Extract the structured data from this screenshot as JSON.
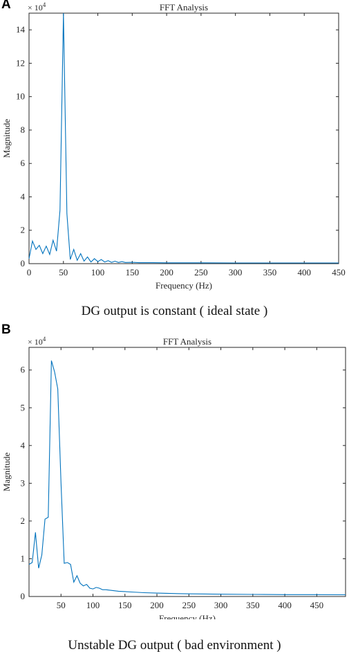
{
  "panels": [
    {
      "letter": "A",
      "caption": "DG output is constant ( ideal state )"
    },
    {
      "letter": "B",
      "caption": "Unstable DG output ( bad environment )"
    }
  ],
  "colors": {
    "line": "#0072BD",
    "axis": "#262626"
  },
  "chart_data": [
    {
      "type": "line",
      "title": "FFT Analysis",
      "xlabel": "Frequency (Hz)",
      "ylabel": "Magnitude",
      "multiplier_label": "× 10",
      "multiplier_exp": "4",
      "xlim": [
        0,
        450
      ],
      "ylim": [
        0,
        15
      ],
      "x_ticks": [
        0,
        50,
        100,
        150,
        200,
        250,
        300,
        350,
        400,
        450
      ],
      "y_ticks": [
        0,
        2,
        4,
        6,
        8,
        10,
        12,
        14
      ],
      "grid": false,
      "series": [
        {
          "x": [
            0,
            5,
            10,
            15,
            20,
            25,
            30,
            35,
            40,
            45,
            50,
            55,
            60,
            65,
            70,
            75,
            80,
            85,
            90,
            95,
            100,
            105,
            110,
            115,
            120,
            125,
            130,
            135,
            140,
            150,
            160,
            180,
            200,
            250,
            300,
            350,
            400,
            450
          ],
          "y": [
            0.3,
            1.35,
            0.85,
            1.1,
            0.6,
            1.05,
            0.55,
            1.4,
            0.75,
            3.2,
            15,
            3.0,
            0.25,
            0.85,
            0.2,
            0.6,
            0.15,
            0.4,
            0.1,
            0.3,
            0.12,
            0.25,
            0.1,
            0.18,
            0.08,
            0.15,
            0.07,
            0.12,
            0.07,
            0.08,
            0.06,
            0.06,
            0.05,
            0.05,
            0.04,
            0.04,
            0.04,
            0.04
          ]
        }
      ]
    },
    {
      "type": "line",
      "title": "FFT Analysis",
      "xlabel": "Frequency (Hz)",
      "ylabel": "Magnitude",
      "multiplier_label": "× 10",
      "multiplier_exp": "4",
      "xlim": [
        0,
        495
      ],
      "ylim": [
        0,
        6.6
      ],
      "x_ticks": [
        50,
        100,
        150,
        200,
        250,
        300,
        350,
        400,
        450
      ],
      "y_ticks": [
        0,
        1,
        2,
        3,
        4,
        5,
        6
      ],
      "grid": false,
      "series": [
        {
          "x": [
            0,
            5,
            10,
            15,
            20,
            25,
            30,
            35,
            40,
            45,
            50,
            55,
            60,
            65,
            70,
            75,
            80,
            85,
            90,
            95,
            100,
            105,
            110,
            115,
            120,
            130,
            140,
            150,
            160,
            170,
            180,
            200,
            220,
            250,
            300,
            350,
            400,
            450,
            495
          ],
          "y": [
            0.85,
            0.9,
            1.7,
            0.75,
            1.1,
            2.05,
            2.1,
            6.25,
            5.95,
            5.5,
            3.0,
            0.88,
            0.9,
            0.85,
            0.38,
            0.55,
            0.35,
            0.28,
            0.32,
            0.22,
            0.2,
            0.24,
            0.22,
            0.18,
            0.18,
            0.16,
            0.14,
            0.13,
            0.12,
            0.11,
            0.1,
            0.09,
            0.08,
            0.07,
            0.06,
            0.055,
            0.05,
            0.05,
            0.045
          ]
        }
      ]
    }
  ]
}
